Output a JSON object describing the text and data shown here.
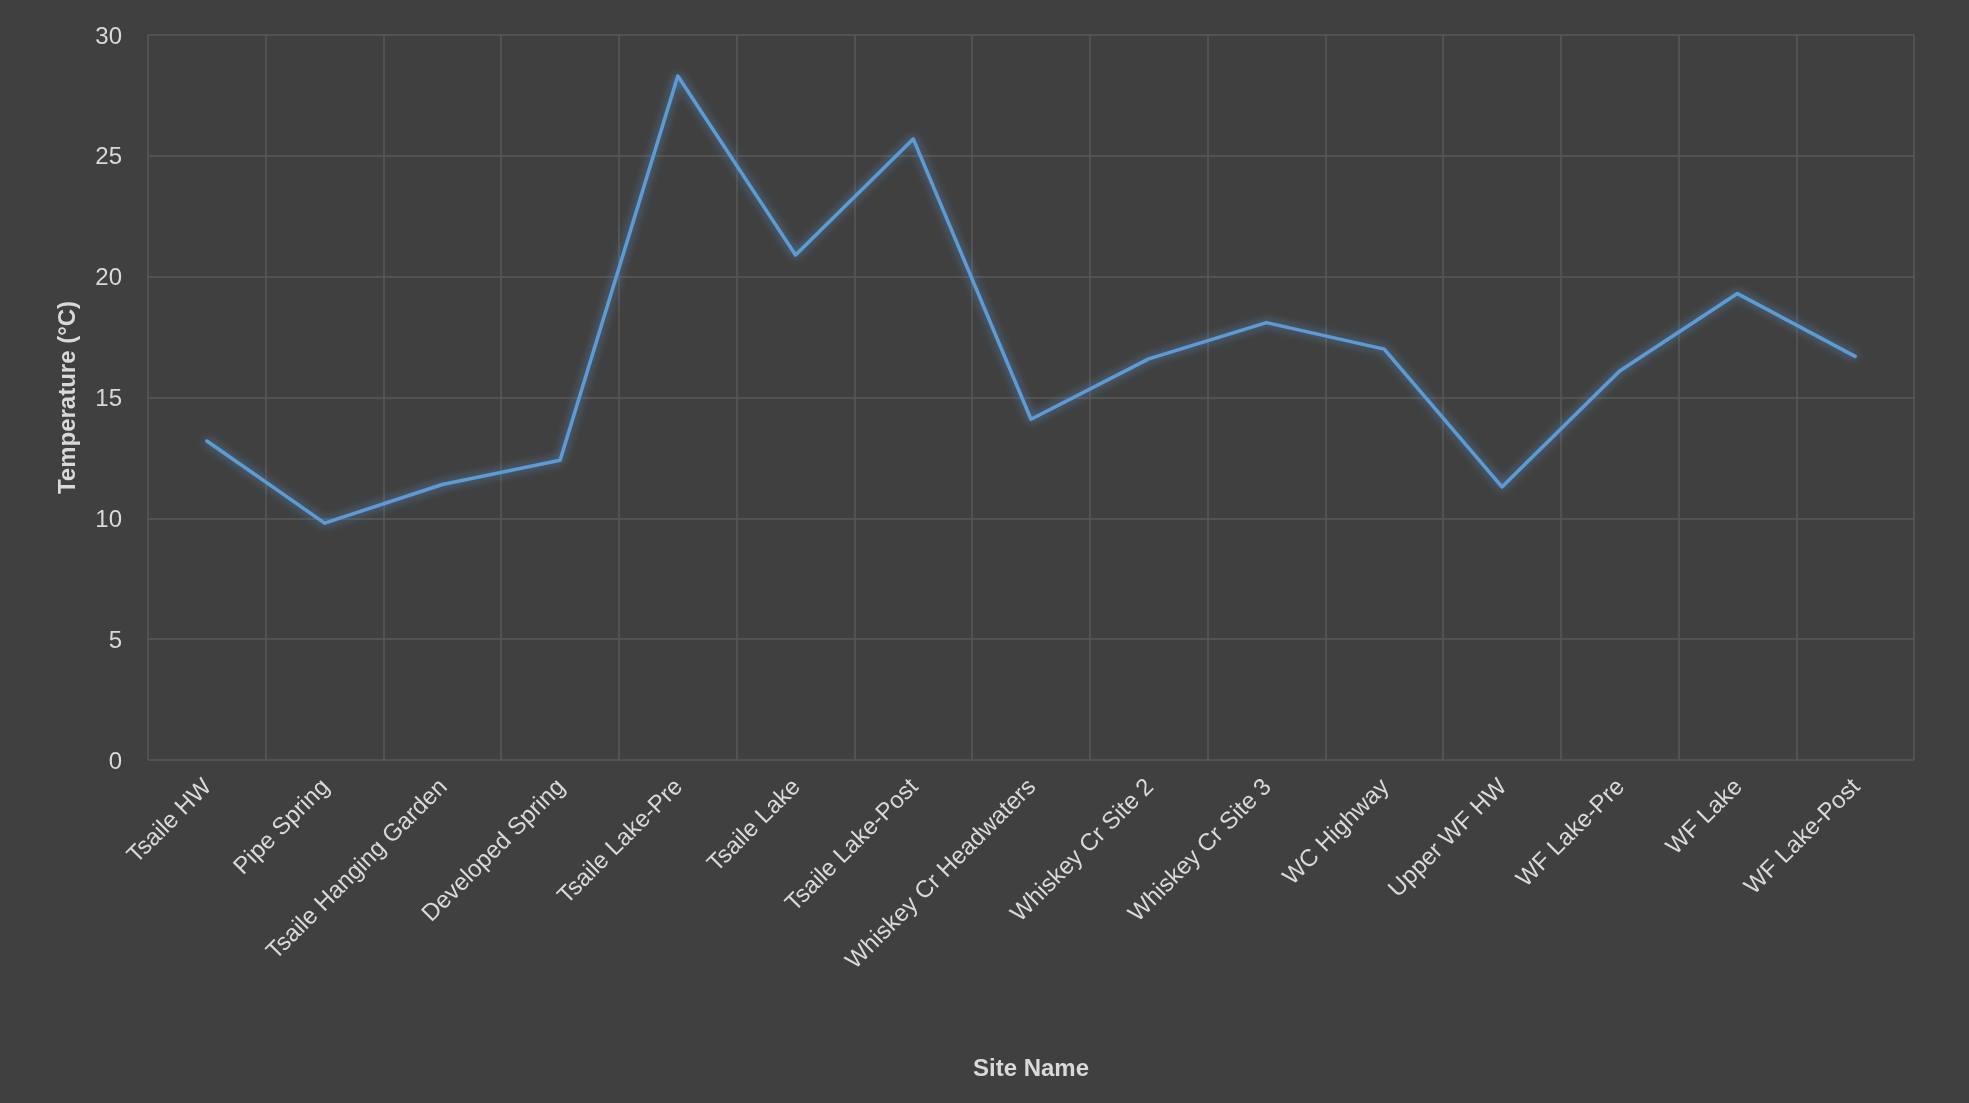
{
  "chart_data": {
    "type": "line",
    "xlabel": "Site Name",
    "ylabel": "Temperature (°C)",
    "categories": [
      "Tsaile HW",
      "Pipe Spring",
      "Tsaile Hanging Garden",
      "Developed Spring",
      "Tsaile Lake-Pre",
      "Tsaile Lake",
      "Tsaile Lake-Post",
      "Whiskey Cr Headwaters",
      "Whiskey Cr Site 2",
      "Whiskey Cr Site 3",
      "WC Highway",
      "Upper WF HW",
      "WF Lake-Pre",
      "WF Lake",
      "WF Lake-Post"
    ],
    "series": [
      {
        "color": "#5b9bd5",
        "values": [
          13.2,
          9.8,
          11.4,
          12.4,
          28.3,
          20.9,
          25.7,
          14.1,
          16.6,
          18.1,
          17.0,
          11.3,
          16.1,
          19.3,
          16.7
        ]
      }
    ],
    "ylim": [
      0,
      30
    ],
    "yticks": [
      0,
      5,
      10,
      15,
      20,
      25,
      30
    ],
    "grid": true,
    "marker": "none",
    "line_style": "solid"
  }
}
